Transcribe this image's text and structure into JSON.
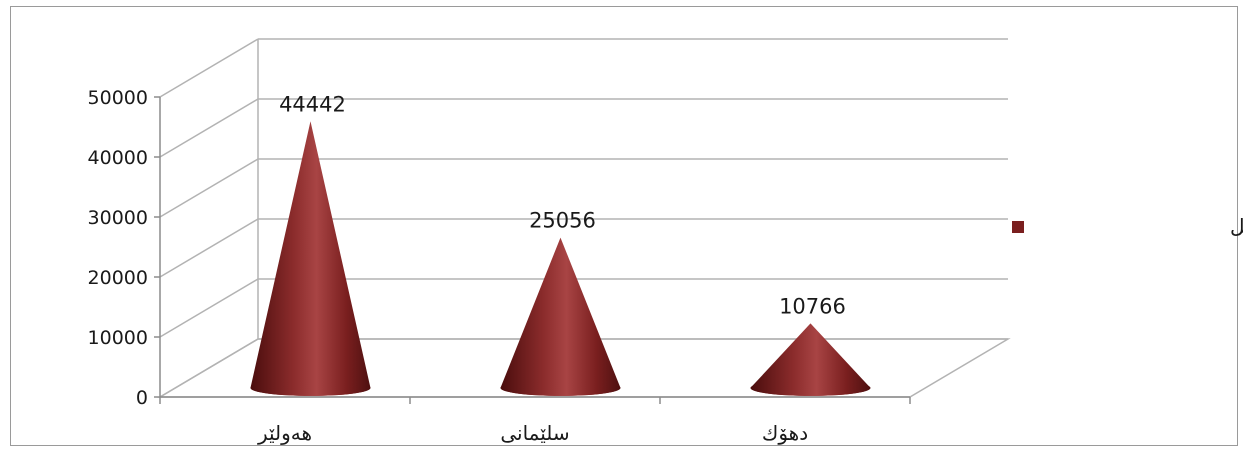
{
  "chart_data": {
    "type": "bar",
    "shape": "cone",
    "three_d": true,
    "categories": [
      "هەولێر",
      "سلێمانی",
      "دهۆك"
    ],
    "series": [
      {
        "name": "ژمارەی ئۆتۆمۆبێل",
        "values": [
          44442,
          25056,
          10766
        ],
        "color": "#7a1f1f"
      }
    ],
    "data_labels": [
      "44442",
      "25056",
      "10766"
    ],
    "y_ticks": [
      0,
      10000,
      20000,
      30000,
      40000,
      50000
    ],
    "y_tick_labels": [
      "0",
      "10000",
      "20000",
      "30000",
      "40000",
      "50000"
    ],
    "ylim": [
      0,
      50000
    ],
    "grid": true,
    "legend": {
      "position": "right"
    },
    "title": "",
    "xlabel": "",
    "ylabel": ""
  },
  "colors": {
    "series": "#7a1f1f",
    "gridline": "#b3b3b3",
    "axis": "#8c8c8c",
    "text": "#1a1a1a"
  }
}
